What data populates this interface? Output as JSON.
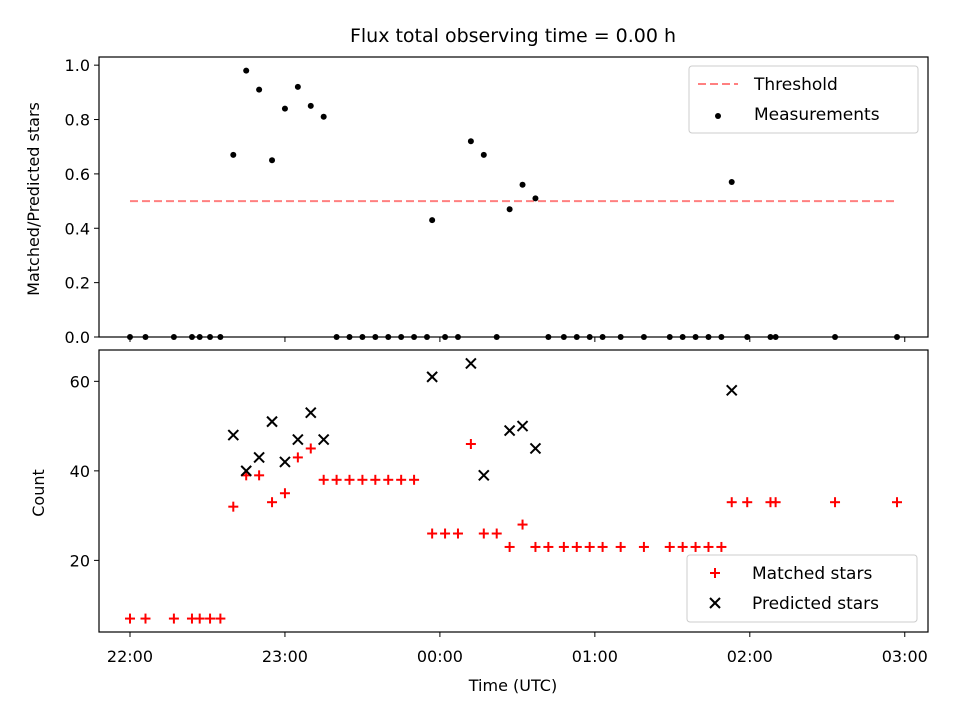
{
  "title": "Flux total observing time = 0.00 h",
  "chart_data": [
    {
      "type": "scatter",
      "ylabel": "Matched/Predicted stars",
      "ylim": [
        0,
        1.03
      ],
      "yticks": [
        "0.0",
        "0.2",
        "0.4",
        "0.6",
        "0.8",
        "1.0"
      ],
      "xlim": [
        "21:48",
        "03:09"
      ],
      "legend_position": "top-right",
      "threshold": {
        "name": "Threshold",
        "value": 0.5,
        "x_start": "22:00",
        "x_end": "02:57",
        "color": "#ff8080"
      },
      "series": [
        {
          "name": "Measurements",
          "color": "#000000",
          "marker": "dot",
          "points": [
            [
              "22:00",
              0
            ],
            [
              "22:06",
              0
            ],
            [
              "22:17",
              0
            ],
            [
              "22:24",
              0
            ],
            [
              "22:27",
              0
            ],
            [
              "22:31",
              0
            ],
            [
              "22:35",
              0
            ],
            [
              "22:40",
              0.67
            ],
            [
              "22:45",
              0.98
            ],
            [
              "22:50",
              0.91
            ],
            [
              "22:55",
              0.65
            ],
            [
              "23:00",
              0.84
            ],
            [
              "23:05",
              0.92
            ],
            [
              "23:10",
              0.85
            ],
            [
              "23:15",
              0.81
            ],
            [
              "23:20",
              0
            ],
            [
              "23:25",
              0
            ],
            [
              "23:30",
              0
            ],
            [
              "23:35",
              0
            ],
            [
              "23:40",
              0
            ],
            [
              "23:45",
              0
            ],
            [
              "23:50",
              0
            ],
            [
              "23:55",
              0
            ],
            [
              "23:57",
              0.43
            ],
            [
              "00:02",
              0
            ],
            [
              "00:07",
              0
            ],
            [
              "00:12",
              0.72
            ],
            [
              "00:17",
              0.67
            ],
            [
              "00:22",
              0
            ],
            [
              "00:27",
              0.47
            ],
            [
              "00:32",
              0.56
            ],
            [
              "00:37",
              0.51
            ],
            [
              "00:42",
              0
            ],
            [
              "00:48",
              0
            ],
            [
              "00:53",
              0
            ],
            [
              "00:58",
              0
            ],
            [
              "01:03",
              0
            ],
            [
              "01:10",
              0
            ],
            [
              "01:19",
              0
            ],
            [
              "01:29",
              0
            ],
            [
              "01:34",
              0
            ],
            [
              "01:39",
              0
            ],
            [
              "01:44",
              0
            ],
            [
              "01:49",
              0
            ],
            [
              "01:53",
              0.57
            ],
            [
              "01:59",
              0
            ],
            [
              "02:08",
              0
            ],
            [
              "02:10",
              0
            ],
            [
              "02:33",
              0
            ],
            [
              "02:57",
              0
            ]
          ]
        }
      ]
    },
    {
      "type": "scatter",
      "xlabel": "Time (UTC)",
      "ylabel": "Count",
      "ylim": [
        4,
        67
      ],
      "yticks": [
        "20",
        "40",
        "60"
      ],
      "xlim": [
        "21:48",
        "03:09"
      ],
      "xticks": [
        "22:00",
        "23:00",
        "00:00",
        "01:00",
        "02:00",
        "03:00"
      ],
      "legend_position": "lower-right",
      "series": [
        {
          "name": "Matched stars",
          "color": "#ff0000",
          "marker": "plus",
          "points": [
            [
              "22:00",
              7
            ],
            [
              "22:06",
              7
            ],
            [
              "22:17",
              7
            ],
            [
              "22:24",
              7
            ],
            [
              "22:27",
              7
            ],
            [
              "22:31",
              7
            ],
            [
              "22:35",
              7
            ],
            [
              "22:40",
              32
            ],
            [
              "22:45",
              39
            ],
            [
              "22:50",
              39
            ],
            [
              "22:55",
              33
            ],
            [
              "23:00",
              35
            ],
            [
              "23:05",
              43
            ],
            [
              "23:10",
              45
            ],
            [
              "23:15",
              38
            ],
            [
              "23:20",
              38
            ],
            [
              "23:25",
              38
            ],
            [
              "23:30",
              38
            ],
            [
              "23:35",
              38
            ],
            [
              "23:40",
              38
            ],
            [
              "23:45",
              38
            ],
            [
              "23:50",
              38
            ],
            [
              "23:57",
              26
            ],
            [
              "00:02",
              26
            ],
            [
              "00:07",
              26
            ],
            [
              "00:12",
              46
            ],
            [
              "00:17",
              26
            ],
            [
              "00:22",
              26
            ],
            [
              "00:27",
              23
            ],
            [
              "00:32",
              28
            ],
            [
              "00:37",
              23
            ],
            [
              "00:42",
              23
            ],
            [
              "00:48",
              23
            ],
            [
              "00:53",
              23
            ],
            [
              "00:58",
              23
            ],
            [
              "01:03",
              23
            ],
            [
              "01:10",
              23
            ],
            [
              "01:19",
              23
            ],
            [
              "01:29",
              23
            ],
            [
              "01:34",
              23
            ],
            [
              "01:39",
              23
            ],
            [
              "01:44",
              23
            ],
            [
              "01:49",
              23
            ],
            [
              "01:53",
              33
            ],
            [
              "01:59",
              33
            ],
            [
              "02:08",
              33
            ],
            [
              "02:10",
              33
            ],
            [
              "02:33",
              33
            ],
            [
              "02:57",
              33
            ]
          ]
        },
        {
          "name": "Predicted stars",
          "color": "#000000",
          "marker": "x",
          "points": [
            [
              "22:40",
              48
            ],
            [
              "22:45",
              40
            ],
            [
              "22:50",
              43
            ],
            [
              "22:55",
              51
            ],
            [
              "23:00",
              42
            ],
            [
              "23:05",
              47
            ],
            [
              "23:10",
              53
            ],
            [
              "23:15",
              47
            ],
            [
              "23:57",
              61
            ],
            [
              "00:12",
              64
            ],
            [
              "00:17",
              39
            ],
            [
              "00:27",
              49
            ],
            [
              "00:32",
              50
            ],
            [
              "00:37",
              45
            ],
            [
              "01:53",
              58
            ]
          ]
        }
      ]
    }
  ]
}
